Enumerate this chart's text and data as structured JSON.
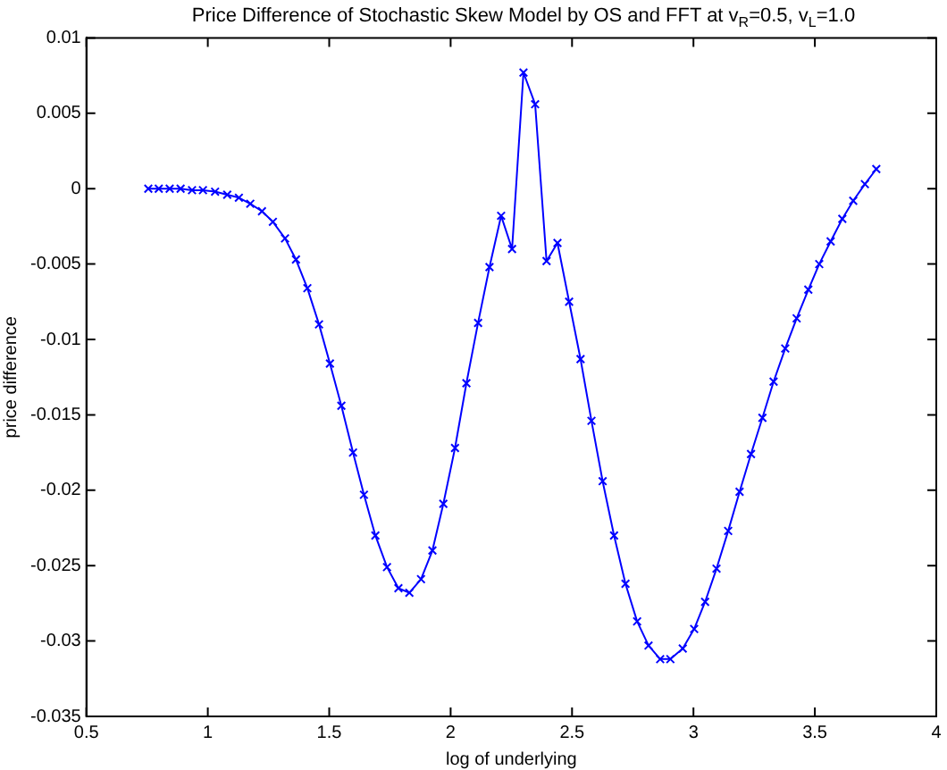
{
  "chart_data": {
    "type": "line",
    "title": "Price Difference of Stochastic Skew Model by OS and FFT at v$_{R}$=0.5, v$_{L}$=1.0",
    "xlabel": "log of underlying",
    "ylabel": "price difference",
    "x": [
      0.755,
      0.798,
      0.843,
      0.888,
      0.935,
      0.98,
      1.03,
      1.08,
      1.128,
      1.175,
      1.223,
      1.268,
      1.318,
      1.363,
      1.41,
      1.458,
      1.503,
      1.55,
      1.598,
      1.643,
      1.69,
      1.738,
      1.785,
      1.83,
      1.878,
      1.925,
      1.97,
      2.018,
      2.065,
      2.113,
      2.16,
      2.208,
      2.253,
      2.3,
      2.348,
      2.395,
      2.44,
      2.488,
      2.535,
      2.58,
      2.626,
      2.673,
      2.72,
      2.768,
      2.815,
      2.863,
      2.905,
      2.956,
      3.003,
      3.048,
      3.095,
      3.143,
      3.19,
      3.237,
      3.284,
      3.33,
      3.378,
      3.425,
      3.473,
      3.518,
      3.565,
      3.613,
      3.658,
      3.706,
      3.753
    ],
    "series": [
      {
        "color": "#0000ff",
        "values": [
          0,
          0,
          0,
          0,
          -0.0001,
          -0.0001,
          -0.0002,
          -0.0004,
          -0.0006,
          -0.001,
          -0.0015,
          -0.0022,
          -0.0033,
          -0.0047,
          -0.0066,
          -0.009,
          -0.0116,
          -0.0144,
          -0.0175,
          -0.0203,
          -0.023,
          -0.0251,
          -0.0265,
          -0.0268,
          -0.0259,
          -0.024,
          -0.0209,
          -0.0172,
          -0.0129,
          -0.0089,
          -0.0052,
          -0.0018,
          -0.004,
          0.0077,
          0.0056,
          -0.0048,
          -0.0036,
          -0.0075,
          -0.0113,
          -0.0154,
          -0.0194,
          -0.023,
          -0.0262,
          -0.0287,
          -0.0303,
          -0.0312,
          -0.0312,
          -0.0305,
          -0.0292,
          -0.0274,
          -0.0252,
          -0.0227,
          -0.0201,
          -0.0176,
          -0.0152,
          -0.0128,
          -0.0106,
          -0.0086,
          -0.0067,
          -0.005,
          -0.0035,
          -0.002,
          -0.0008,
          0.0003,
          0.0013
        ]
      }
    ],
    "xlim": [
      0.5,
      4
    ],
    "xticks": [
      0.5,
      1,
      1.5,
      2,
      2.5,
      3,
      3.5,
      4
    ],
    "ylim": [
      -0.035,
      0.01
    ],
    "yticks": [
      -0.035,
      -0.03,
      -0.025,
      -0.02,
      -0.015,
      -0.01,
      -0.005,
      0,
      0.005,
      0.01
    ],
    "grid": false,
    "legend": false,
    "marker": "cross",
    "line_style": "solid"
  }
}
